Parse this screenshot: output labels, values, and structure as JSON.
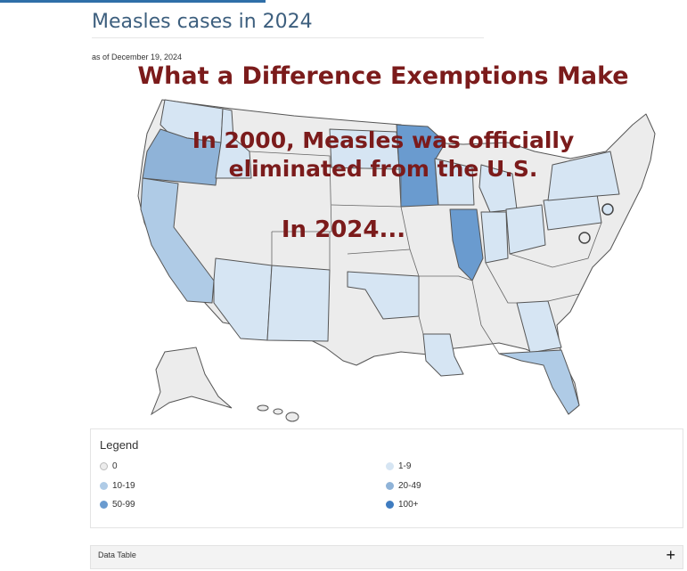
{
  "header": {
    "title": "Measles cases in 2024",
    "date": "as of December 19, 2024"
  },
  "overlay": {
    "headline": "What a Difference Exemptions Make",
    "line1": "In 2000, Measles was officially",
    "line2": "eliminated from the U.S.",
    "line3": "In 2024..."
  },
  "colors": {
    "c0": "#ececec",
    "c1_9": "#d6e5f3",
    "c10_19": "#afcbe6",
    "c20_49": "#8fb3d8",
    "c50_99": "#6a9bcf",
    "c100": "#3f7cc0",
    "accent": "#2f6fa8",
    "overlay_text": "#7b1b1b"
  },
  "legend": {
    "title": "Legend",
    "items": [
      {
        "label": "0",
        "color": "#ececec"
      },
      {
        "label": "1-9",
        "color": "#d6e5f3"
      },
      {
        "label": "10-19",
        "color": "#afcbe6"
      },
      {
        "label": "20-49",
        "color": "#8fb3d8"
      },
      {
        "label": "50-99",
        "color": "#6a9bcf"
      },
      {
        "label": "100+",
        "color": "#3f7cc0"
      }
    ]
  },
  "data_table": {
    "label": "Data Table",
    "toggle": "+"
  },
  "map_regions": [
    {
      "name": "washington",
      "bin": "1-9"
    },
    {
      "name": "oregon",
      "bin": "20-49"
    },
    {
      "name": "california",
      "bin": "10-19"
    },
    {
      "name": "idaho",
      "bin": "1-9"
    },
    {
      "name": "minnesota",
      "bin": "50-99"
    },
    {
      "name": "illinois",
      "bin": "50-99"
    },
    {
      "name": "florida",
      "bin": "10-19"
    },
    {
      "name": "arizona",
      "bin": "1-9"
    },
    {
      "name": "new-mexico",
      "bin": "1-9"
    },
    {
      "name": "north-dakota",
      "bin": "1-9"
    },
    {
      "name": "wisconsin",
      "bin": "1-9"
    },
    {
      "name": "michigan",
      "bin": "1-9"
    },
    {
      "name": "pennsylvania",
      "bin": "1-9"
    },
    {
      "name": "new-york",
      "bin": "1-9"
    },
    {
      "name": "ohio",
      "bin": "1-9"
    },
    {
      "name": "indiana",
      "bin": "1-9"
    },
    {
      "name": "georgia",
      "bin": "1-9"
    },
    {
      "name": "louisiana",
      "bin": "1-9"
    },
    {
      "name": "oklahoma",
      "bin": "1-9"
    }
  ]
}
